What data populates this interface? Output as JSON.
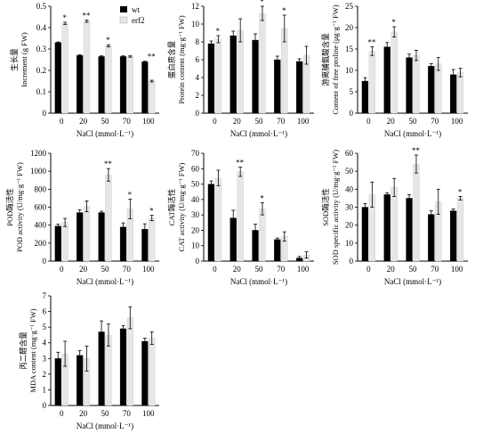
{
  "figure": {
    "legend": [
      {
        "name": "wt",
        "color": "#000000"
      },
      {
        "name": "erf2",
        "color": "#e6e6e6"
      }
    ]
  },
  "chart_data": [
    {
      "type": "bar",
      "ylabel_cn": "生长量",
      "ylabel_en": "Increment (g FW)",
      "xlabel": "NaCl (mmol·L⁻¹)",
      "categories": [
        "0",
        "20",
        "50",
        "70",
        "100"
      ],
      "ylim": [
        0,
        0.5
      ],
      "yticks": [
        "0",
        "0.1",
        "0.2",
        "0.3",
        "0.4",
        "0.5"
      ],
      "series": [
        {
          "name": "wt",
          "values": [
            0.33,
            0.27,
            0.265,
            0.265,
            0.24
          ],
          "errors": [
            0.003,
            0.003,
            0.003,
            0.003,
            0.003
          ]
        },
        {
          "name": "erf2",
          "values": [
            0.42,
            0.43,
            0.315,
            0.265,
            0.15
          ],
          "errors": [
            0.005,
            0.005,
            0.005,
            0.003,
            0.004
          ]
        }
      ],
      "annotations": [
        {
          "category": "0",
          "text": "*"
        },
        {
          "category": "20",
          "text": "**"
        },
        {
          "category": "50",
          "text": "*"
        },
        {
          "category": "100",
          "text": "**"
        }
      ]
    },
    {
      "type": "bar",
      "ylabel_cn": "蛋白质含量",
      "ylabel_en": "Protein content (mg·g⁻¹ FW)",
      "xlabel": "NaCl (mmol·L⁻¹)",
      "categories": [
        "0",
        "20",
        "50",
        "70",
        "100"
      ],
      "ylim": [
        0,
        12
      ],
      "yticks": [
        "0",
        "2",
        "4",
        "6",
        "8",
        "10",
        "12"
      ],
      "series": [
        {
          "name": "wt",
          "values": [
            7.8,
            8.7,
            8.2,
            6.0,
            5.8
          ],
          "errors": [
            0.3,
            0.5,
            0.7,
            0.4,
            0.3
          ]
        },
        {
          "name": "erf2",
          "values": [
            8.3,
            9.3,
            11.2,
            9.5,
            6.5
          ],
          "errors": [
            0.4,
            1.3,
            0.8,
            1.5,
            1.0
          ]
        }
      ],
      "annotations": [
        {
          "category": "0",
          "text": "*"
        },
        {
          "category": "50",
          "text": "*"
        },
        {
          "category": "70",
          "text": "*"
        }
      ]
    },
    {
      "type": "bar",
      "ylabel_cn": "游离脯氨酸含量",
      "ylabel_en": "Content of free proline (μg·g⁻¹ FW)",
      "xlabel": "NaCl (mmol·L⁻¹)",
      "categories": [
        "0",
        "20",
        "50",
        "70",
        "100"
      ],
      "ylim": [
        0,
        25
      ],
      "yticks": [
        "0",
        "5",
        "10",
        "15",
        "20",
        "25"
      ],
      "series": [
        {
          "name": "wt",
          "values": [
            7.5,
            15.5,
            13.0,
            11.0,
            9.0
          ],
          "errors": [
            0.8,
            1.0,
            0.8,
            0.6,
            1.2
          ]
        },
        {
          "name": "erf2",
          "values": [
            14.5,
            19.0,
            13.5,
            11.5,
            9.5
          ],
          "errors": [
            1.0,
            1.2,
            1.2,
            1.5,
            1.0
          ]
        }
      ],
      "annotations": [
        {
          "category": "0",
          "text": "**"
        },
        {
          "category": "20",
          "text": "*"
        }
      ]
    },
    {
      "type": "bar",
      "ylabel_cn": "POD酶活性",
      "ylabel_en": "POD activity (U/mg·g⁻¹ FW)",
      "xlabel": "NaCl (mmol·L⁻¹)",
      "categories": [
        "0",
        "20",
        "50",
        "70",
        "100"
      ],
      "ylim": [
        0,
        1200
      ],
      "yticks": [
        "0",
        "200",
        "400",
        "600",
        "800",
        "1000",
        "1200"
      ],
      "series": [
        {
          "name": "wt",
          "values": [
            390,
            540,
            540,
            380,
            355
          ],
          "errors": [
            20,
            30,
            15,
            45,
            60
          ]
        },
        {
          "name": "erf2",
          "values": [
            430,
            610,
            960,
            580,
            480
          ],
          "errors": [
            45,
            60,
            70,
            110,
            30
          ]
        }
      ],
      "annotations": [
        {
          "category": "50",
          "text": "**"
        },
        {
          "category": "70",
          "text": "*"
        },
        {
          "category": "100",
          "text": "*"
        }
      ]
    },
    {
      "type": "bar",
      "ylabel_cn": "CAT酶活性",
      "ylabel_en": "CAT activity (U/mg·g⁻¹ FW)",
      "xlabel": "NaCl (mmol·L⁻¹)",
      "categories": [
        "0",
        "20",
        "50",
        "70",
        "100"
      ],
      "ylim": [
        0,
        70
      ],
      "yticks": [
        "0",
        "10",
        "20",
        "30",
        "40",
        "50",
        "60",
        "70"
      ],
      "series": [
        {
          "name": "wt",
          "values": [
            50,
            28,
            20,
            14,
            2
          ],
          "errors": [
            2,
            5,
            4,
            1,
            1
          ]
        },
        {
          "name": "erf2",
          "values": [
            54,
            58,
            34,
            16,
            4
          ],
          "errors": [
            5,
            3,
            4,
            3,
            2
          ]
        }
      ],
      "annotations": [
        {
          "category": "20",
          "text": "**"
        },
        {
          "category": "50",
          "text": "*"
        }
      ]
    },
    {
      "type": "bar",
      "ylabel_cn": "SOD酶活性",
      "ylabel_en": "SOD specific activity (U/mg·g⁻¹ FW)",
      "xlabel": "NaCl (mmol·L⁻¹)",
      "categories": [
        "0",
        "20",
        "50",
        "70",
        "100"
      ],
      "ylim": [
        0,
        60
      ],
      "yticks": [
        "0",
        "10",
        "20",
        "30",
        "40",
        "50",
        "60"
      ],
      "series": [
        {
          "name": "wt",
          "values": [
            30,
            37,
            35,
            26,
            28
          ],
          "errors": [
            2,
            1,
            2,
            2,
            1
          ]
        },
        {
          "name": "erf2",
          "values": [
            37,
            41,
            54,
            33,
            35
          ],
          "errors": [
            7,
            5,
            5,
            7,
            1
          ]
        }
      ],
      "annotations": [
        {
          "category": "50",
          "text": "**"
        },
        {
          "category": "100",
          "text": "*"
        }
      ]
    },
    {
      "type": "bar",
      "ylabel_cn": "丙二醛含量",
      "ylabel_en": "MDA content (mg·g⁻¹ FW)",
      "xlabel": "NaCl (mmol·L⁻¹)",
      "categories": [
        "0",
        "20",
        "50",
        "70",
        "100"
      ],
      "ylim": [
        0,
        7
      ],
      "yticks": [
        "0",
        "1",
        "2",
        "3",
        "4",
        "5",
        "6",
        "7"
      ],
      "series": [
        {
          "name": "wt",
          "values": [
            3.0,
            3.2,
            4.7,
            4.9,
            4.1
          ],
          "errors": [
            0.4,
            0.3,
            0.7,
            0.2,
            0.2
          ]
        },
        {
          "name": "erf2",
          "values": [
            3.3,
            3.0,
            4.5,
            5.6,
            4.3
          ],
          "errors": [
            0.8,
            0.8,
            0.7,
            0.7,
            0.4
          ]
        }
      ],
      "annotations": []
    }
  ]
}
